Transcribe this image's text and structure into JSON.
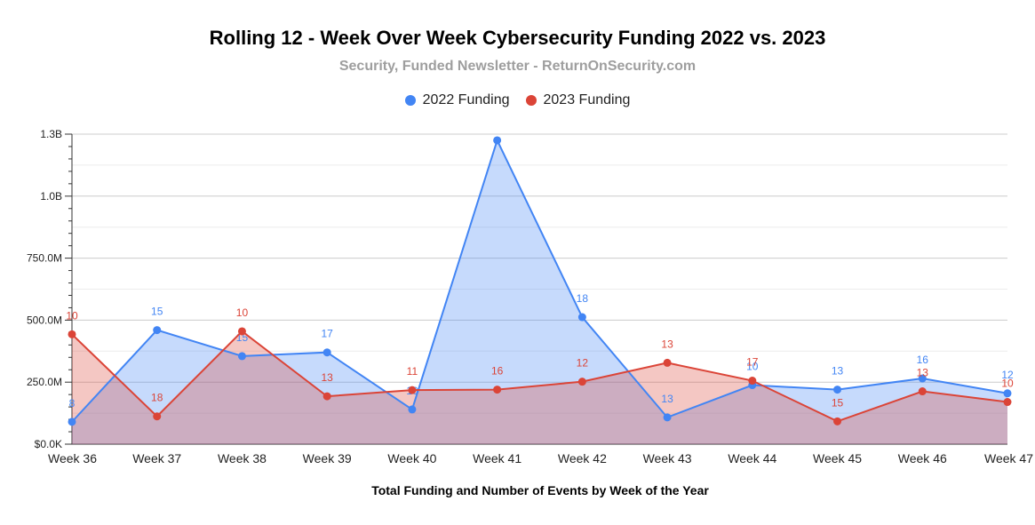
{
  "chart_data": {
    "type": "area",
    "title": "Rolling 12 - Week Over Week Cybersecurity Funding 2022 vs. 2023",
    "subtitle": "Security, Funded Newsletter - ReturnOnSecurity.com",
    "xlabel": "Total Funding and Number of Events by Week of the Year",
    "ylabel": "",
    "categories": [
      "Week 36",
      "Week 37",
      "Week 38",
      "Week 39",
      "Week 40",
      "Week 41",
      "Week 42",
      "Week 43",
      "Week 44",
      "Week 45",
      "Week 46",
      "Week 47"
    ],
    "ylim": [
      0,
      1250000000
    ],
    "yticks": [
      0,
      250000000,
      500000000,
      750000000,
      1000000000,
      1250000000
    ],
    "ytick_labels": [
      "$0.0K",
      "250.0M",
      "500.0M",
      "750.0M",
      "1.0B",
      "1.3B"
    ],
    "grid": true,
    "legend_position": "top",
    "series": [
      {
        "name": "2022 Funding",
        "color": "#4285f4",
        "fill": "#c6d9f7",
        "values": [
          90000000,
          460000000,
          355000000,
          370000000,
          140000000,
          1225000000,
          512000000,
          108000000,
          238000000,
          220000000,
          265000000,
          205000000
        ],
        "labels": [
          "8",
          "15",
          "15",
          "17",
          "10",
          "",
          "18",
          "13",
          "10",
          "13",
          "16",
          "12"
        ]
      },
      {
        "name": "2023 Funding",
        "color": "#db4437",
        "fill": "#f4c1bd",
        "values": [
          443000000,
          112000000,
          455000000,
          193000000,
          218000000,
          220000000,
          252000000,
          328000000,
          256000000,
          92000000,
          213000000,
          170000000
        ],
        "labels": [
          "10",
          "18",
          "10",
          "13",
          "11",
          "16",
          "12",
          "13",
          "17",
          "15",
          "13",
          "10"
        ]
      }
    ]
  }
}
